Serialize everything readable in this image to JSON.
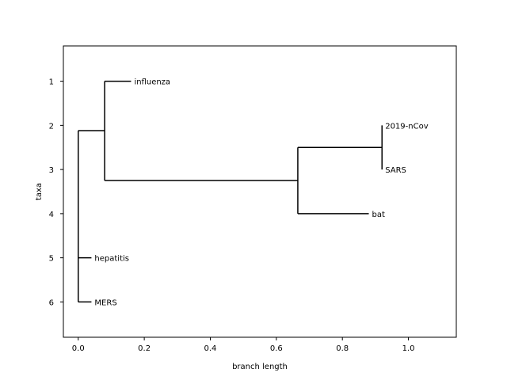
{
  "chart_data": {
    "type": "tree",
    "xlabel": "branch length",
    "ylabel": "taxa",
    "xlim": [
      -0.045,
      1.145
    ],
    "ylim": [
      6.8,
      0.2
    ],
    "xticks": [
      0.0,
      0.2,
      0.4,
      0.6,
      0.8,
      1.0
    ],
    "xtick_labels": [
      "0.0",
      "0.2",
      "0.4",
      "0.6",
      "0.8",
      "1.0"
    ],
    "yticks": [
      1,
      2,
      3,
      4,
      5,
      6
    ],
    "ytick_labels": [
      "1",
      "2",
      "3",
      "4",
      "5",
      "6"
    ],
    "grid": false,
    "nodes": {
      "root": {
        "x": 0.0,
        "y": 2.12
      },
      "n1": {
        "x": 0.08,
        "y": 2.12
      },
      "n2": {
        "x": 0.665,
        "y": 3.25
      },
      "n3": {
        "x": 0.92,
        "y": 2.5
      }
    },
    "branches": [
      {
        "from": "root",
        "to": "n1"
      },
      {
        "from": "n1",
        "to": "n2"
      },
      {
        "from": "n2",
        "to": "n3"
      }
    ],
    "leaves": [
      {
        "name": "influenza",
        "y": 1,
        "x": 0.16,
        "parent": "n1"
      },
      {
        "name": "2019-nCov",
        "y": 2,
        "x": 0.92,
        "parent": "n3"
      },
      {
        "name": "SARS",
        "y": 3,
        "x": 0.92,
        "parent": "n3"
      },
      {
        "name": "bat",
        "y": 4,
        "x": 0.88,
        "parent": "n2"
      },
      {
        "name": "hepatitis",
        "y": 5,
        "x": 0.04,
        "parent": "root"
      },
      {
        "name": "MERS",
        "y": 6,
        "x": 0.04,
        "parent": "root"
      }
    ]
  }
}
